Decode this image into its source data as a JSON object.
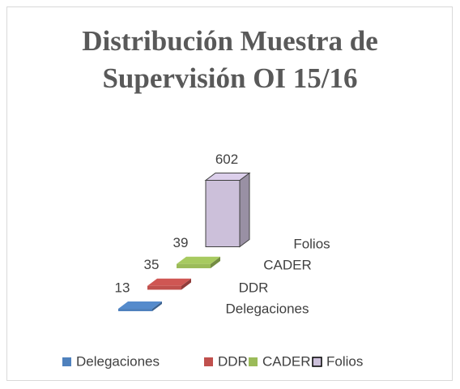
{
  "chart_data": {
    "type": "bar3d",
    "title": "Distribución Muestra de Supervisión OI 15/16",
    "series": [
      {
        "name": "Delegaciones",
        "color": "#4f81bd",
        "values": [
          13
        ]
      },
      {
        "name": "DDR",
        "color": "#c0504d",
        "values": [
          35
        ]
      },
      {
        "name": "CADER",
        "color": "#9bbb59",
        "values": [
          39
        ]
      },
      {
        "name": "Folios",
        "color": "#ccc0da",
        "values": [
          602
        ]
      }
    ],
    "legend": "bottom"
  }
}
